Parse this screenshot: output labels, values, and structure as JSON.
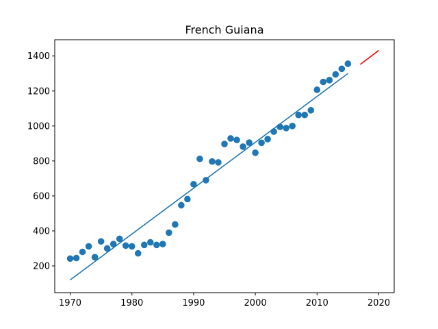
{
  "chart_data": {
    "type": "scatter",
    "title": "French Guiana",
    "xlabel": "",
    "ylabel": "",
    "xlim": [
      1967.5,
      2022.5
    ],
    "ylim": [
      47,
      1493
    ],
    "x_ticks": [
      1970,
      1980,
      1990,
      2000,
      2010,
      2020
    ],
    "y_ticks": [
      200,
      400,
      600,
      800,
      1000,
      1200,
      1400
    ],
    "grid": false,
    "legend": "none",
    "colors": {
      "points": "#1f77b4",
      "fit_line": "#1f77b4",
      "forecast_line": "#ff0000"
    },
    "series": [
      {
        "kind": "scatter",
        "x": [
          1970,
          1971,
          1972,
          1973,
          1974,
          1975,
          1976,
          1977,
          1978,
          1979,
          1980,
          1981,
          1982,
          1983,
          1984,
          1985,
          1986,
          1987,
          1988,
          1989,
          1990,
          1991,
          1992,
          1993,
          1994,
          1995,
          1996,
          1997,
          1998,
          1999,
          2000,
          2001,
          2002,
          2003,
          2004,
          2005,
          2006,
          2007,
          2008,
          2009,
          2010,
          2011,
          2012,
          2013,
          2014,
          2015
        ],
        "y": [
          242,
          245,
          280,
          312,
          250,
          340,
          300,
          325,
          355,
          316,
          312,
          272,
          320,
          335,
          320,
          325,
          390,
          437,
          547,
          582,
          667,
          812,
          690,
          797,
          792,
          897,
          929,
          920,
          882,
          905,
          847,
          904,
          925,
          968,
          995,
          988,
          1000,
          1063,
          1063,
          1090,
          1207,
          1252,
          1262,
          1295,
          1327,
          1356
        ]
      },
      {
        "kind": "line",
        "x": [
          1970,
          2015
        ],
        "y": [
          120,
          1300
        ]
      },
      {
        "kind": "line",
        "x": [
          2017,
          2020
        ],
        "y": [
          1352,
          1432
        ]
      }
    ]
  }
}
